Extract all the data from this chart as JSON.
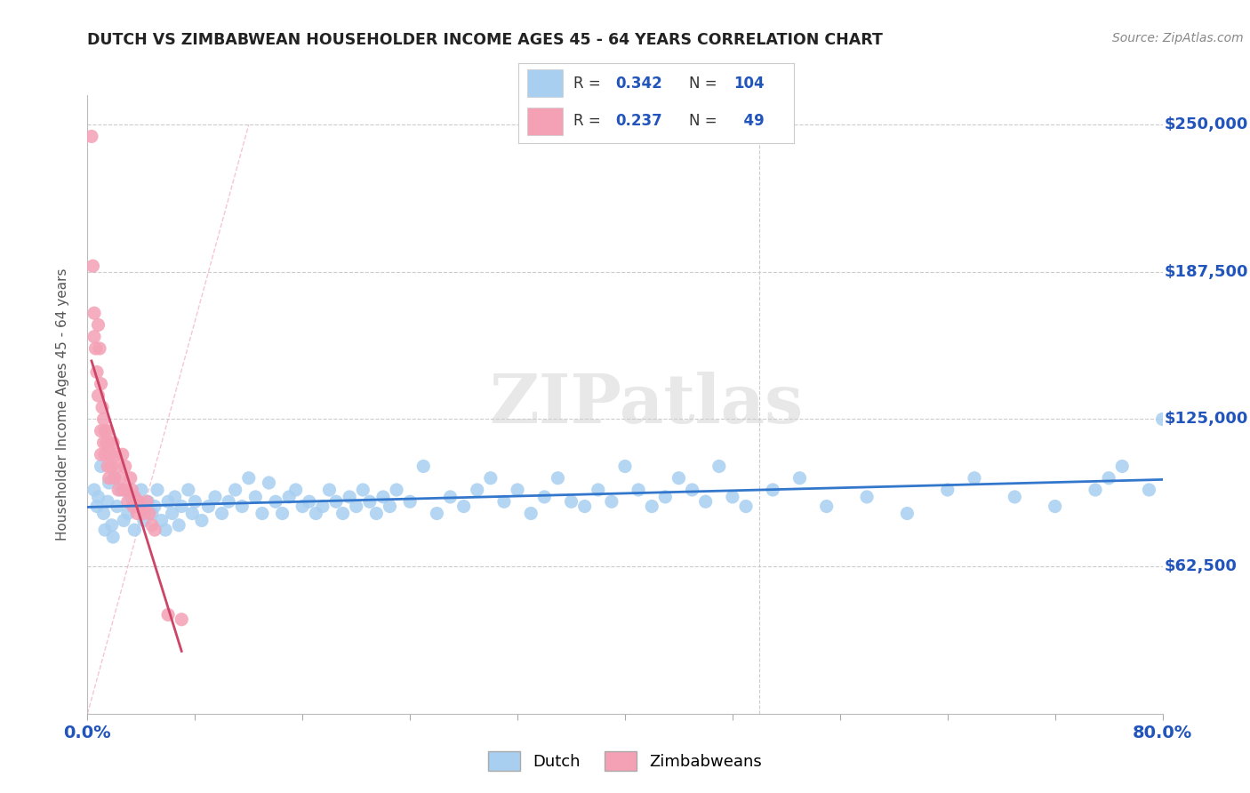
{
  "title": "DUTCH VS ZIMBABWEAN HOUSEHOLDER INCOME AGES 45 - 64 YEARS CORRELATION CHART",
  "source": "Source: ZipAtlas.com",
  "ylabel": "Householder Income Ages 45 - 64 years",
  "xlim": [
    0.0,
    0.8
  ],
  "ylim": [
    0,
    262500
  ],
  "xticks": [
    0.0,
    0.08,
    0.16,
    0.24,
    0.32,
    0.4,
    0.48,
    0.56,
    0.64,
    0.72,
    0.8
  ],
  "ytick_values": [
    0,
    62500,
    125000,
    187500,
    250000
  ],
  "dutch_R": 0.342,
  "dutch_N": 104,
  "zimbabwean_R": 0.237,
  "zimbabwean_N": 49,
  "dutch_color": "#a8cff0",
  "zimbabwean_color": "#f4a0b5",
  "dutch_line_color": "#3377cc",
  "zimbabwean_line_color": "#cc4466",
  "legend_label_dutch": "Dutch",
  "legend_label_zim": "Zimbabweans",
  "watermark": "ZIPatlas",
  "background_color": "#ffffff",
  "title_color": "#222222",
  "axis_color": "#2255bb",
  "title_fontsize": 12.5,
  "dutch_x": [
    0.005,
    0.007,
    0.008,
    0.01,
    0.012,
    0.013,
    0.015,
    0.016,
    0.018,
    0.019,
    0.02,
    0.022,
    0.025,
    0.027,
    0.03,
    0.032,
    0.035,
    0.037,
    0.04,
    0.042,
    0.045,
    0.048,
    0.05,
    0.052,
    0.055,
    0.058,
    0.06,
    0.063,
    0.065,
    0.068,
    0.07,
    0.075,
    0.078,
    0.08,
    0.085,
    0.09,
    0.095,
    0.1,
    0.105,
    0.11,
    0.115,
    0.12,
    0.125,
    0.13,
    0.135,
    0.14,
    0.145,
    0.15,
    0.155,
    0.16,
    0.165,
    0.17,
    0.175,
    0.18,
    0.185,
    0.19,
    0.195,
    0.2,
    0.205,
    0.21,
    0.215,
    0.22,
    0.225,
    0.23,
    0.24,
    0.25,
    0.26,
    0.27,
    0.28,
    0.29,
    0.3,
    0.31,
    0.32,
    0.33,
    0.34,
    0.35,
    0.36,
    0.37,
    0.38,
    0.39,
    0.4,
    0.41,
    0.42,
    0.43,
    0.44,
    0.45,
    0.46,
    0.47,
    0.48,
    0.49,
    0.51,
    0.53,
    0.55,
    0.58,
    0.61,
    0.64,
    0.66,
    0.69,
    0.72,
    0.75,
    0.76,
    0.77,
    0.79,
    0.8
  ],
  "dutch_y": [
    95000,
    88000,
    92000,
    105000,
    85000,
    78000,
    90000,
    98000,
    80000,
    75000,
    100000,
    88000,
    95000,
    82000,
    85000,
    92000,
    78000,
    88000,
    95000,
    82000,
    90000,
    85000,
    88000,
    95000,
    82000,
    78000,
    90000,
    85000,
    92000,
    80000,
    88000,
    95000,
    85000,
    90000,
    82000,
    88000,
    92000,
    85000,
    90000,
    95000,
    88000,
    100000,
    92000,
    85000,
    98000,
    90000,
    85000,
    92000,
    95000,
    88000,
    90000,
    85000,
    88000,
    95000,
    90000,
    85000,
    92000,
    88000,
    95000,
    90000,
    85000,
    92000,
    88000,
    95000,
    90000,
    105000,
    85000,
    92000,
    88000,
    95000,
    100000,
    90000,
    95000,
    85000,
    92000,
    100000,
    90000,
    88000,
    95000,
    90000,
    105000,
    95000,
    88000,
    92000,
    100000,
    95000,
    90000,
    105000,
    92000,
    88000,
    95000,
    100000,
    88000,
    92000,
    85000,
    95000,
    100000,
    92000,
    88000,
    95000,
    100000,
    105000,
    95000,
    125000
  ],
  "zim_x": [
    0.003,
    0.004,
    0.005,
    0.005,
    0.006,
    0.007,
    0.008,
    0.008,
    0.009,
    0.01,
    0.01,
    0.01,
    0.011,
    0.012,
    0.012,
    0.013,
    0.013,
    0.014,
    0.015,
    0.015,
    0.016,
    0.016,
    0.017,
    0.018,
    0.019,
    0.02,
    0.021,
    0.022,
    0.023,
    0.025,
    0.026,
    0.027,
    0.028,
    0.029,
    0.03,
    0.032,
    0.033,
    0.034,
    0.035,
    0.037,
    0.038,
    0.04,
    0.042,
    0.044,
    0.046,
    0.048,
    0.05,
    0.06,
    0.07
  ],
  "zim_y": [
    245000,
    190000,
    170000,
    160000,
    155000,
    145000,
    165000,
    135000,
    155000,
    120000,
    140000,
    110000,
    130000,
    125000,
    115000,
    120000,
    110000,
    115000,
    120000,
    105000,
    115000,
    100000,
    110000,
    105000,
    115000,
    100000,
    110000,
    105000,
    95000,
    100000,
    110000,
    95000,
    105000,
    95000,
    90000,
    100000,
    95000,
    88000,
    92000,
    85000,
    90000,
    88000,
    85000,
    90000,
    85000,
    80000,
    78000,
    42000,
    40000
  ],
  "ref_line_x": [
    0.0,
    0.12
  ],
  "ref_line_y": [
    0,
    250000
  ]
}
